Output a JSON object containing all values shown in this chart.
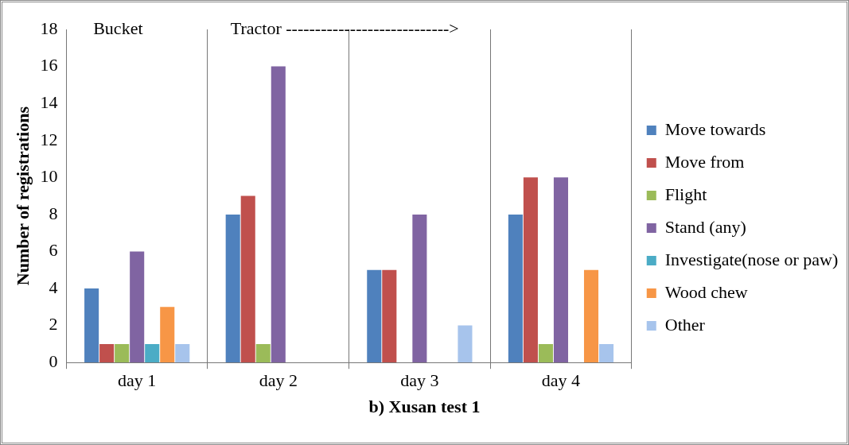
{
  "chart_data": {
    "type": "bar",
    "title": "b) Xusan test 1",
    "ylabel": "Number of registrations",
    "categories": [
      "day 1",
      "day 2",
      "day 3",
      "day 4"
    ],
    "series": [
      {
        "name": "Move towards",
        "color": "#4f81bd",
        "values": [
          4,
          8,
          5,
          8
        ]
      },
      {
        "name": "Move from",
        "color": "#c0504d",
        "values": [
          1,
          9,
          5,
          10
        ]
      },
      {
        "name": "Flight",
        "color": "#9bbb59",
        "values": [
          1,
          1,
          0,
          1
        ]
      },
      {
        "name": "Stand (any)",
        "color": "#8064a2",
        "values": [
          6,
          16,
          8,
          10
        ]
      },
      {
        "name": "Investigate(nose or paw)",
        "color": "#4bacc6",
        "values": [
          1,
          0,
          0,
          0
        ]
      },
      {
        "name": "Wood chew",
        "color": "#f79646",
        "values": [
          3,
          0,
          0,
          5
        ]
      },
      {
        "name": "Other",
        "color": "#a7c4ec",
        "values": [
          1,
          0,
          2,
          1
        ]
      }
    ],
    "ylim": [
      0,
      18
    ],
    "yticks": [
      0,
      2,
      4,
      6,
      8,
      10,
      12,
      14,
      16,
      18
    ],
    "grid": "x",
    "legend": "right",
    "annotations": [
      "Bucket",
      "Tractor ---------------------------->"
    ]
  }
}
